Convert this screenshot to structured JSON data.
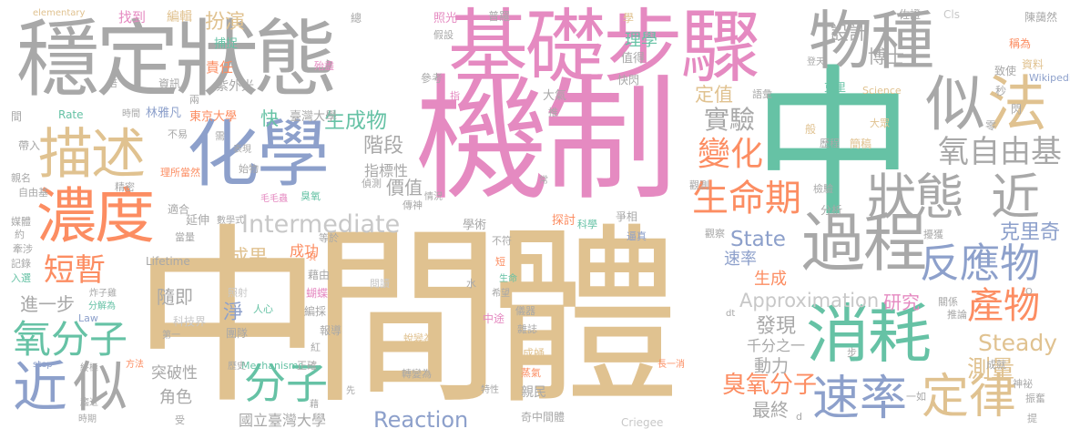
{
  "words": [
    {
      "text": "中間體",
      "color": "#e0c290"
    },
    {
      "text": "機制",
      "color": "#e58ac1"
    },
    {
      "text": "中",
      "color": "#66c2a5"
    },
    {
      "text": "穩定狀態",
      "color": "#a8a8a8"
    },
    {
      "text": "基礎步驟",
      "color": "#e58ac1"
    },
    {
      "text": "化學",
      "color": "#8da0cb"
    },
    {
      "text": "物種",
      "color": "#a8a8a8"
    },
    {
      "text": "過程",
      "color": "#a8a8a8"
    },
    {
      "text": "濃度",
      "color": "#fc8d62"
    },
    {
      "text": "描述",
      "color": "#e0c290"
    },
    {
      "text": "消耗",
      "color": "#66c2a5"
    },
    {
      "text": "似",
      "color": "#a8a8a8"
    },
    {
      "text": "法",
      "color": "#e0c290"
    },
    {
      "text": "狀態",
      "color": "#a8a8a8"
    },
    {
      "text": "近",
      "color": "#a8a8a8"
    },
    {
      "text": "生命期",
      "color": "#fc8d62"
    },
    {
      "text": "反應物",
      "color": "#8da0cb"
    },
    {
      "text": "產物",
      "color": "#fc8d62"
    },
    {
      "text": "速率",
      "color": "#8da0cb"
    },
    {
      "text": "定律",
      "color": "#e0c290"
    },
    {
      "text": "近",
      "color": "#8da0cb"
    },
    {
      "text": "似",
      "color": "#a8a8a8"
    },
    {
      "text": "分子",
      "color": "#66c2a5"
    },
    {
      "text": "氧分子",
      "color": "#66c2a5"
    },
    {
      "text": "短暫",
      "color": "#fc8d62"
    },
    {
      "text": "變化",
      "color": "#fc8d62"
    },
    {
      "text": "實驗",
      "color": "#a8a8a8"
    },
    {
      "text": "氧自由基",
      "color": "#a8a8a8"
    },
    {
      "text": "Intermediate",
      "color": "#c8c8c8"
    },
    {
      "text": "Approximation",
      "color": "#c8c8c8"
    },
    {
      "text": "Steady",
      "color": "#e0c290"
    },
    {
      "text": "State",
      "color": "#8da0cb"
    },
    {
      "text": "Reaction",
      "color": "#8da0cb"
    },
    {
      "text": "克里奇",
      "color": "#8da0cb"
    },
    {
      "text": "臭氧分子",
      "color": "#fc8d62"
    },
    {
      "text": "測量",
      "color": "#e0c290"
    },
    {
      "text": "生成物",
      "color": "#66c2a5"
    },
    {
      "text": "階段",
      "color": "#a8a8a8"
    },
    {
      "text": "扮演",
      "color": "#e0c290"
    },
    {
      "text": "設計",
      "color": "#a8a8a8"
    },
    {
      "text": "博士",
      "color": "#a8a8a8"
    },
    {
      "text": "定值",
      "color": "#e0c290"
    },
    {
      "text": "淨",
      "color": "#8da0cb"
    },
    {
      "text": "成果",
      "color": "#e0c290"
    },
    {
      "text": "隨即",
      "color": "#a8a8a8"
    },
    {
      "text": "進一步",
      "color": "#a8a8a8"
    },
    {
      "text": "角色",
      "color": "#a8a8a8"
    },
    {
      "text": "突破性",
      "color": "#a8a8a8"
    },
    {
      "text": "發現",
      "color": "#a8a8a8"
    },
    {
      "text": "研究",
      "color": "#e58ac1"
    },
    {
      "text": "最終",
      "color": "#a8a8a8"
    },
    {
      "text": "動力",
      "color": "#a8a8a8"
    },
    {
      "text": "生成",
      "color": "#fc8d62"
    },
    {
      "text": "速率",
      "color": "#8da0cb"
    },
    {
      "text": "千分之一",
      "color": "#a8a8a8"
    },
    {
      "text": "國立臺灣大學",
      "color": "#a8a8a8"
    },
    {
      "text": "臺灣大學",
      "color": "#a8a8a8"
    },
    {
      "text": "東京大學",
      "color": "#fc8d62"
    },
    {
      "text": "林雅凡",
      "color": "#8da0cb"
    },
    {
      "text": "快",
      "color": "#66c2a5"
    },
    {
      "text": "指標性",
      "color": "#a8a8a8"
    },
    {
      "text": "價值",
      "color": "#a8a8a8"
    },
    {
      "text": "找到",
      "color": "#e58ac1"
    },
    {
      "text": "編輯",
      "color": "#e0c290"
    },
    {
      "text": "捕捉",
      "color": "#66c2a5"
    },
    {
      "text": "責任",
      "color": "#fc8d62"
    },
    {
      "text": "紫外光",
      "color": "#a8a8a8"
    },
    {
      "text": "資訊",
      "color": "#a8a8a8"
    },
    {
      "text": "殆盡",
      "color": "#e58ac1"
    },
    {
      "text": "總",
      "color": "#a8a8a8"
    },
    {
      "text": "照光",
      "color": "#e58ac1"
    },
    {
      "text": "假設",
      "color": "#a8a8a8"
    },
    {
      "text": "普羅",
      "color": "#a8a8a8"
    },
    {
      "text": "學",
      "color": "#e0c290"
    },
    {
      "text": "理學",
      "color": "#66c2a5"
    },
    {
      "text": "值得",
      "color": "#a8a8a8"
    },
    {
      "text": "佐證",
      "color": "#a8a8a8"
    },
    {
      "text": "Cls",
      "color": "#c8c8c8"
    },
    {
      "text": "陳藹然",
      "color": "#a8a8a8"
    },
    {
      "text": "稱為",
      "color": "#fc8d62"
    },
    {
      "text": "資料",
      "color": "#e0c290"
    },
    {
      "text": "Wikipedia",
      "color": "#8da0cb"
    },
    {
      "text": "elementary",
      "color": "#e0c290"
    },
    {
      "text": "Science",
      "color": "#e0c290"
    },
    {
      "text": "Lifetime",
      "color": "#a8a8a8"
    },
    {
      "text": "Mechanisms",
      "color": "#66c2a5"
    },
    {
      "text": "Criegee",
      "color": "#c8c8c8"
    },
    {
      "text": "Rate",
      "color": "#66c2a5"
    },
    {
      "text": "Law",
      "color": "#8da0cb"
    },
    {
      "text": "step",
      "color": "#8da0cb"
    },
    {
      "text": "理所當然",
      "color": "#fc8d62"
    },
    {
      "text": "長一消",
      "color": "#fc8d62"
    },
    {
      "text": "蛻變為",
      "color": "#e0c290"
    },
    {
      "text": "轉變為",
      "color": "#a8a8a8"
    },
    {
      "text": "團隊",
      "color": "#a8a8a8"
    },
    {
      "text": "科技界",
      "color": "#c8c8c8"
    },
    {
      "text": "照射",
      "color": "#c8c8c8"
    },
    {
      "text": "人心",
      "color": "#66c2a5"
    },
    {
      "text": "蝴蝶",
      "color": "#e58ac1"
    },
    {
      "text": "編採",
      "color": "#a8a8a8"
    },
    {
      "text": "紅",
      "color": "#a8a8a8"
    },
    {
      "text": "報導",
      "color": "#a8a8a8"
    },
    {
      "text": "藉由",
      "color": "#a8a8a8"
    },
    {
      "text": "項",
      "color": "#fc8d62"
    },
    {
      "text": "成功",
      "color": "#fc8d62"
    },
    {
      "text": "正確",
      "color": "#a8a8a8"
    },
    {
      "text": "閱讀",
      "color": "#c8c8c8"
    },
    {
      "text": "水",
      "color": "#a8a8a8"
    },
    {
      "text": "中途",
      "color": "#e58ac1"
    },
    {
      "text": "儀器",
      "color": "#a8a8a8"
    },
    {
      "text": "雜誌",
      "color": "#a8a8a8"
    },
    {
      "text": "成蛹",
      "color": "#e0c290"
    },
    {
      "text": "蒸氣",
      "color": "#fc8d62"
    },
    {
      "text": "親民",
      "color": "#a8a8a8"
    },
    {
      "text": "奇中間體",
      "color": "#a8a8a8"
    },
    {
      "text": "學術",
      "color": "#a8a8a8"
    },
    {
      "text": "探討",
      "color": "#fc8d62"
    },
    {
      "text": "科學",
      "color": "#66c2a5"
    },
    {
      "text": "爭相",
      "color": "#a8a8a8"
    },
    {
      "text": "逼真",
      "color": "#8da0cb"
    },
    {
      "text": "觀察",
      "color": "#a8a8a8"
    },
    {
      "text": "擾獲",
      "color": "#a8a8a8"
    },
    {
      "text": "分析",
      "color": "#a8a8a8"
    },
    {
      "text": "檢驗",
      "color": "#a8a8a8"
    },
    {
      "text": "觀測",
      "color": "#a8a8a8"
    },
    {
      "text": "簡稿",
      "color": "#e0c290"
    },
    {
      "text": "大眾",
      "color": "#e0c290"
    },
    {
      "text": "般",
      "color": "#e0c290"
    },
    {
      "text": "歷程",
      "color": "#a8a8a8"
    },
    {
      "text": "語彙",
      "color": "#a8a8a8"
    },
    {
      "text": "大氣",
      "color": "#a8a8a8"
    },
    {
      "text": "快閃",
      "color": "#a8a8a8"
    },
    {
      "text": "類",
      "color": "#e58ac1"
    },
    {
      "text": "推",
      "color": "#a8a8a8"
    },
    {
      "text": "指",
      "color": "#e58ac1"
    },
    {
      "text": "參考",
      "color": "#a8a8a8"
    },
    {
      "text": "登天",
      "color": "#a8a8a8"
    },
    {
      "text": "致使",
      "color": "#a8a8a8"
    },
    {
      "text": "秒",
      "color": "#a8a8a8"
    },
    {
      "text": "閃",
      "color": "#a8a8a8"
    },
    {
      "text": "零",
      "color": "#a8a8a8"
    },
    {
      "text": "克里",
      "color": "#66c2a5"
    },
    {
      "text": "延伸",
      "color": "#a8a8a8"
    },
    {
      "text": "數學式",
      "color": "#a8a8a8"
    },
    {
      "text": "始物",
      "color": "#a8a8a8"
    },
    {
      "text": "毛毛蟲",
      "color": "#e58ac1"
    },
    {
      "text": "臭氧",
      "color": "#66c2a5"
    },
    {
      "text": "偵測",
      "color": "#a8a8a8"
    },
    {
      "text": "情況",
      "color": "#a8a8a8"
    },
    {
      "text": "常",
      "color": "#a8a8a8"
    },
    {
      "text": "傳神",
      "color": "#a8a8a8"
    },
    {
      "text": "適合",
      "color": "#a8a8a8"
    },
    {
      "text": "精密",
      "color": "#a8a8a8"
    },
    {
      "text": "親名",
      "color": "#a8a8a8"
    },
    {
      "text": "自由基",
      "color": "#a8a8a8"
    },
    {
      "text": "媒體",
      "color": "#a8a8a8"
    },
    {
      "text": "約",
      "color": "#a8a8a8"
    },
    {
      "text": "牽涉",
      "color": "#a8a8a8"
    },
    {
      "text": "記錄",
      "color": "#a8a8a8"
    },
    {
      "text": "入選",
      "color": "#66c2a5"
    },
    {
      "text": "間",
      "color": "#a8a8a8"
    },
    {
      "text": "帶入",
      "color": "#a8a8a8"
    },
    {
      "text": "時間",
      "color": "#a8a8a8"
    },
    {
      "text": "不易",
      "color": "#a8a8a8"
    },
    {
      "text": "需",
      "color": "#a8a8a8"
    },
    {
      "text": "表現",
      "color": "#a8a8a8"
    },
    {
      "text": "兩",
      "color": "#a8a8a8"
    },
    {
      "text": "倍",
      "color": "#a8a8a8"
    },
    {
      "text": "等於",
      "color": "#a8a8a8"
    },
    {
      "text": "當量",
      "color": "#a8a8a8"
    },
    {
      "text": "炸子雞",
      "color": "#a8a8a8"
    },
    {
      "text": "分解為",
      "color": "#66c2a5"
    },
    {
      "text": "第一",
      "color": "#a8a8a8"
    },
    {
      "text": "終極",
      "color": "#a8a8a8"
    },
    {
      "text": "方法",
      "color": "#fc8d62"
    },
    {
      "text": "趨近",
      "color": "#a8a8a8"
    },
    {
      "text": "時期",
      "color": "#a8a8a8"
    },
    {
      "text": "受",
      "color": "#a8a8a8"
    },
    {
      "text": "歷史",
      "color": "#a8a8a8"
    },
    {
      "text": "藉",
      "color": "#a8a8a8"
    },
    {
      "text": "先",
      "color": "#a8a8a8"
    },
    {
      "text": "特性",
      "color": "#a8a8a8"
    },
    {
      "text": "希望",
      "color": "#a8a8a8"
    },
    {
      "text": "生命",
      "color": "#66c2a5"
    },
    {
      "text": "短",
      "color": "#fc8d62"
    },
    {
      "text": "不符",
      "color": "#a8a8a8"
    },
    {
      "text": "dt",
      "color": "#a8a8a8"
    },
    {
      "text": "d",
      "color": "#a8a8a8"
    },
    {
      "text": "步",
      "color": "#a8a8a8"
    },
    {
      "text": "一如",
      "color": "#a8a8a8"
    },
    {
      "text": "成就",
      "color": "#a8a8a8"
    },
    {
      "text": "神祕",
      "color": "#a8a8a8"
    },
    {
      "text": "振奮",
      "color": "#a8a8a8"
    },
    {
      "text": "提",
      "color": "#a8a8a8"
    },
    {
      "text": "推論",
      "color": "#a8a8a8"
    },
    {
      "text": "關係",
      "color": "#a8a8a8"
    },
    {
      "text": "O",
      "color": "#a8a8a8"
    }
  ]
}
